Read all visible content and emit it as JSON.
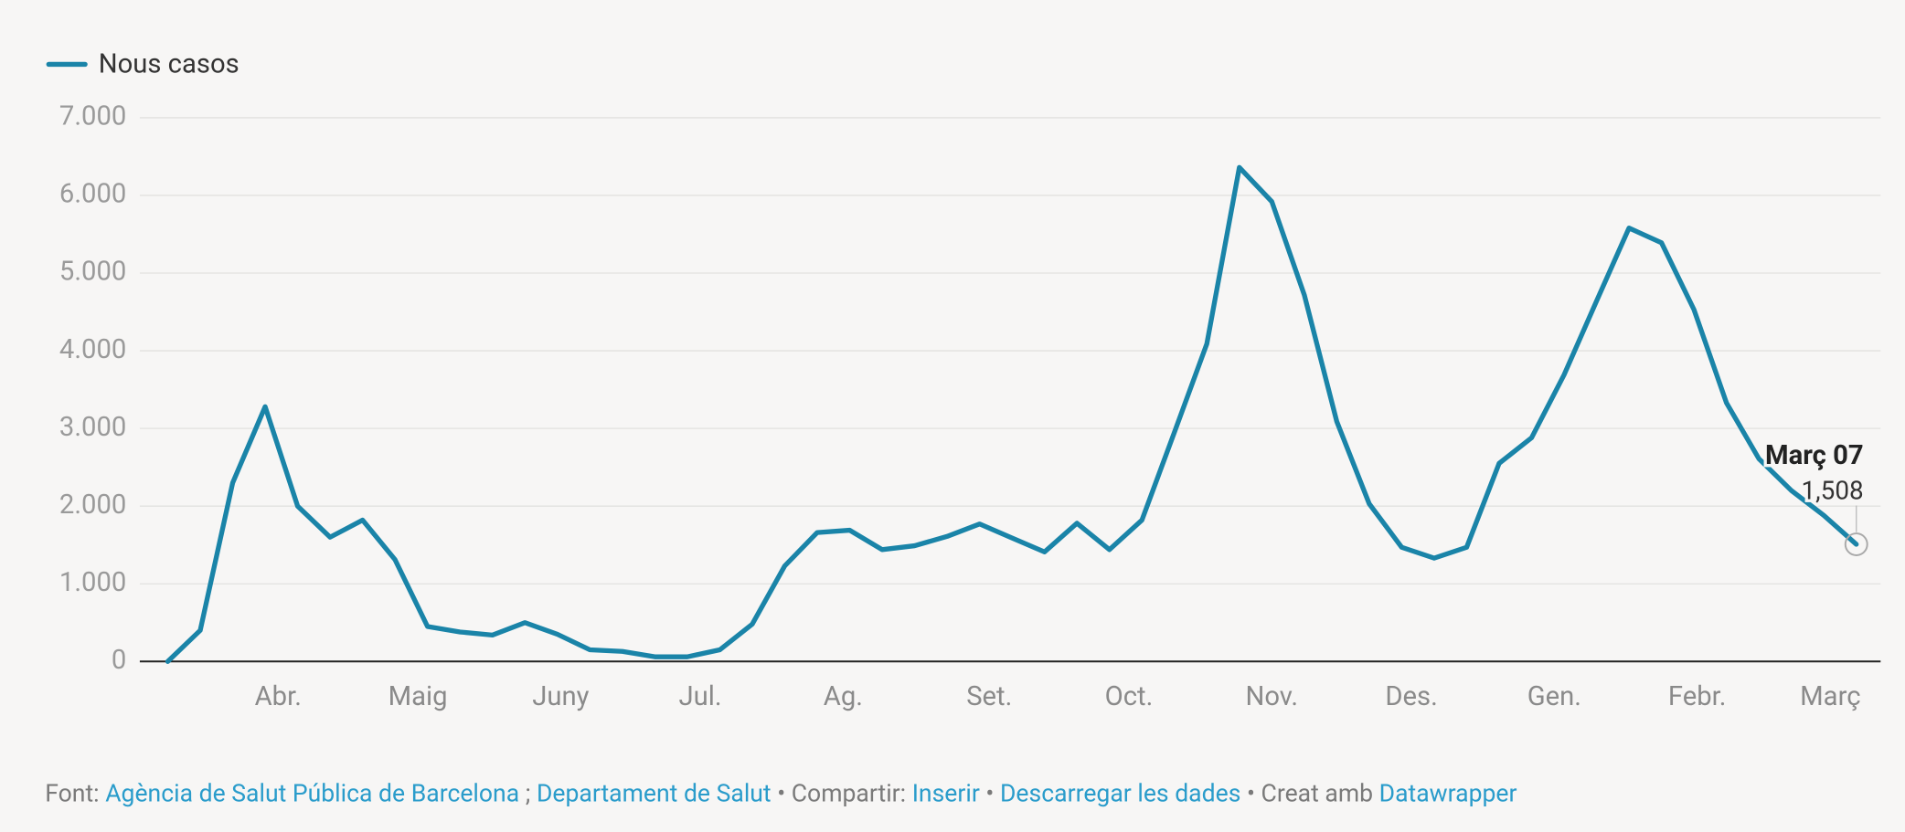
{
  "chart_data": {
    "type": "line",
    "legend": "top-left",
    "grid": true,
    "categories": [
      null,
      null,
      null,
      null,
      null,
      null,
      null,
      null,
      null,
      null,
      null,
      null,
      null,
      null,
      null,
      null,
      null,
      null,
      null,
      null,
      null,
      null,
      null,
      null,
      null,
      null,
      null,
      null,
      null,
      null,
      null,
      null,
      null,
      null,
      null,
      null,
      null,
      null,
      null,
      null,
      null,
      null,
      null,
      null,
      null,
      null,
      null,
      null,
      null,
      null,
      null,
      null,
      null
    ],
    "series": [
      {
        "name": "Nous casos",
        "color": "#1a84a8",
        "values": [
          0,
          400,
          2300,
          3280,
          2000,
          1600,
          1820,
          1310,
          450,
          380,
          340,
          500,
          350,
          150,
          130,
          60,
          60,
          150,
          480,
          1230,
          1660,
          1690,
          1440,
          1490,
          1610,
          1770,
          1590,
          1410,
          1780,
          1440,
          1820,
          2950,
          4090,
          6360,
          5920,
          4720,
          3090,
          2030,
          1470,
          1330,
          1470,
          2550,
          2880,
          3690,
          4640,
          5580,
          5390,
          4530,
          3330,
          2610,
          2200,
          1880,
          1508
        ],
        "value_labels": [
          null,
          null,
          null,
          null,
          null,
          null,
          null,
          null,
          null,
          null,
          null,
          null,
          null,
          null,
          null,
          null,
          null,
          null,
          null,
          null,
          null,
          null,
          null,
          null,
          null,
          null,
          null,
          null,
          null,
          null,
          null,
          null,
          null,
          null,
          null,
          null,
          null,
          null,
          null,
          null,
          null,
          null,
          null,
          null,
          null,
          null,
          null,
          null,
          null,
          null,
          null,
          null,
          "1,508"
        ]
      }
    ],
    "annotation": "Març 07",
    "ylim": [
      0,
      7000
    ],
    "yticks": [
      0,
      {
        "value": 1000,
        "label": "1.000"
      },
      {
        "value": 2000,
        "label": "2.000"
      },
      {
        "value": 3000,
        "label": "3.000"
      },
      {
        "value": 4000,
        "label": "4.000"
      },
      {
        "value": 5000,
        "label": "5.000"
      },
      {
        "value": 6000,
        "label": "6.000"
      },
      {
        "value": 7000,
        "label": "7.000"
      }
    ],
    "xticks": [
      {
        "value": 3.4,
        "label": "Abr."
      },
      {
        "value": 7.7,
        "label": "Maig"
      },
      {
        "value": 12.1,
        "label": "Juny"
      },
      {
        "value": 16.4,
        "label": "Jul."
      },
      {
        "value": 20.8,
        "label": "Ag."
      },
      {
        "value": 25.3,
        "label": "Set."
      },
      {
        "value": 29.6,
        "label": "Oct."
      },
      {
        "value": 34.0,
        "label": "Nov."
      },
      {
        "value": 38.3,
        "label": "Des."
      },
      {
        "value": 42.7,
        "label": "Gen."
      },
      {
        "value": 47.1,
        "label": "Febr."
      },
      {
        "value": 51.2,
        "label": "Març"
      }
    ],
    "footer": [
      {
        "text": "Font: ",
        "link": false
      },
      {
        "text": "Agència de Salut Pública de Barcelona",
        "link": true
      },
      {
        "text": " ; ",
        "link": false
      },
      {
        "text": "Departament de Salut",
        "link": true
      },
      {
        "text": " • Compartir: ",
        "link": false
      },
      {
        "text": "Inserir",
        "link": true
      },
      {
        "text": " • ",
        "link": false
      },
      {
        "text": "Descarregar les dades",
        "link": true
      },
      {
        "text": " • Creat amb ",
        "link": false
      },
      {
        "text": "Datawrapper",
        "link": true
      }
    ]
  }
}
